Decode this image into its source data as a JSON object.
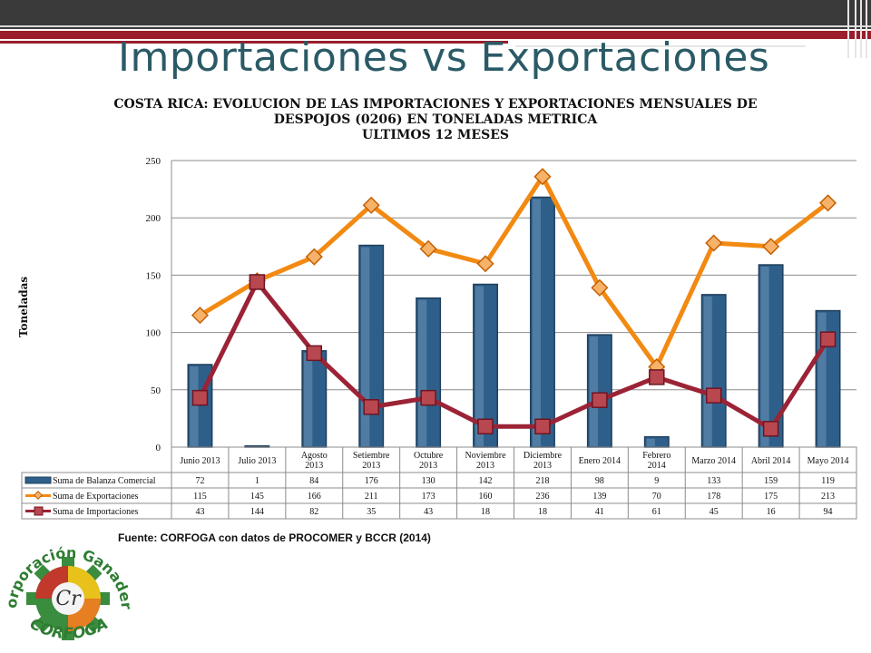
{
  "slide": {
    "title": "Importaciones vs Exportaciones",
    "source": "Fuente: CORFOGA con datos de PROCOMER y BCCR (2014)"
  },
  "logo": {
    "text_top": "Corporación Ganadera",
    "text_bottom": "CORFOGA",
    "colors": {
      "green": "#3a8c3f",
      "red": "#c0392b",
      "yellow": "#e8c21a",
      "orange": "#e67e22"
    }
  },
  "chart_data": {
    "type": "bar",
    "title_lines": [
      "COSTA RICA: EVOLUCION DE LAS IMPORTACIONES Y EXPORTACIONES MENSUALES DE",
      "DESPOJOS (0206) EN TONELADAS METRICA",
      "ULTIMOS 12 MESES"
    ],
    "ylabel": "Toneladas",
    "xlabel": "",
    "ylim": [
      0,
      250
    ],
    "yticks": [
      0,
      50,
      100,
      150,
      200,
      250
    ],
    "grid": true,
    "legend": "data-table",
    "categories": [
      [
        "Junio 2013"
      ],
      [
        "Julio 2013"
      ],
      [
        "Agosto",
        "2013"
      ],
      [
        "Setiembre",
        "2013"
      ],
      [
        "Octubre",
        "2013"
      ],
      [
        "Noviembre",
        "2013"
      ],
      [
        "Diciembre",
        "2013"
      ],
      [
        "Enero 2014"
      ],
      [
        "Febrero",
        "2014"
      ],
      [
        "Marzo 2014"
      ],
      [
        "Abril 2014"
      ],
      [
        "Mayo 2014"
      ]
    ],
    "series": [
      {
        "name": "Suma de Balanza Comercial",
        "type": "bar",
        "color": "#2e5f8a",
        "values": [
          72,
          1,
          84,
          176,
          130,
          142,
          218,
          98,
          9,
          133,
          159,
          119
        ]
      },
      {
        "name": "Suma de Exportaciones",
        "type": "line",
        "color": "#f28a12",
        "values": [
          115,
          145,
          166,
          211,
          173,
          160,
          236,
          139,
          70,
          178,
          175,
          213
        ]
      },
      {
        "name": "Suma de Importaciones",
        "type": "line",
        "color": "#9b2335",
        "values": [
          43,
          144,
          82,
          35,
          43,
          18,
          18,
          41,
          61,
          45,
          16,
          94
        ]
      }
    ]
  }
}
